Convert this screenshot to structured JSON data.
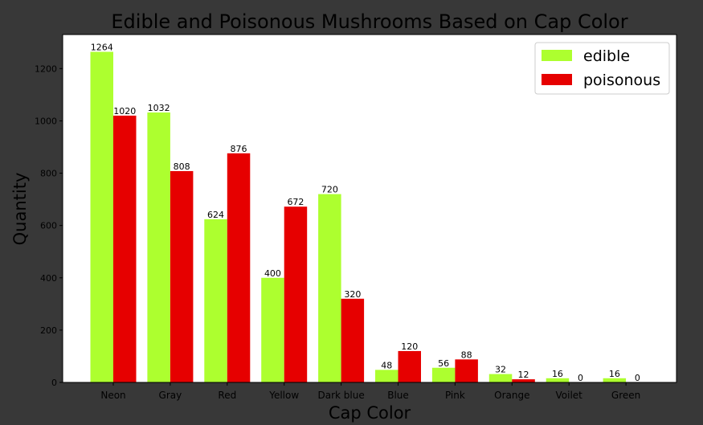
{
  "colors": {
    "background": "#383838",
    "edible": "#adff2f",
    "poisonous": "#e60000"
  },
  "chart_data": {
    "type": "bar",
    "title": "Edible and Poisonous Mushrooms Based on Cap Color",
    "xlabel": "Cap Color",
    "ylabel": "Quantity",
    "categories": [
      "Neon",
      "Gray",
      "Red",
      "Yellow",
      "Dark blue",
      "Blue",
      "Pink",
      "Orange",
      "Voilet",
      "Green"
    ],
    "series": [
      {
        "name": "edible",
        "color": "#adff2f",
        "values": [
          1264,
          1032,
          624,
          400,
          720,
          48,
          56,
          32,
          16,
          16
        ]
      },
      {
        "name": "poisonous",
        "color": "#e60000",
        "values": [
          1020,
          808,
          876,
          672,
          320,
          120,
          88,
          12,
          0,
          0
        ]
      }
    ],
    "ylim": [
      0,
      1330
    ],
    "yticks": [
      0,
      200,
      400,
      600,
      800,
      1000,
      1200
    ],
    "grid": false,
    "legend_position": "top-right"
  }
}
